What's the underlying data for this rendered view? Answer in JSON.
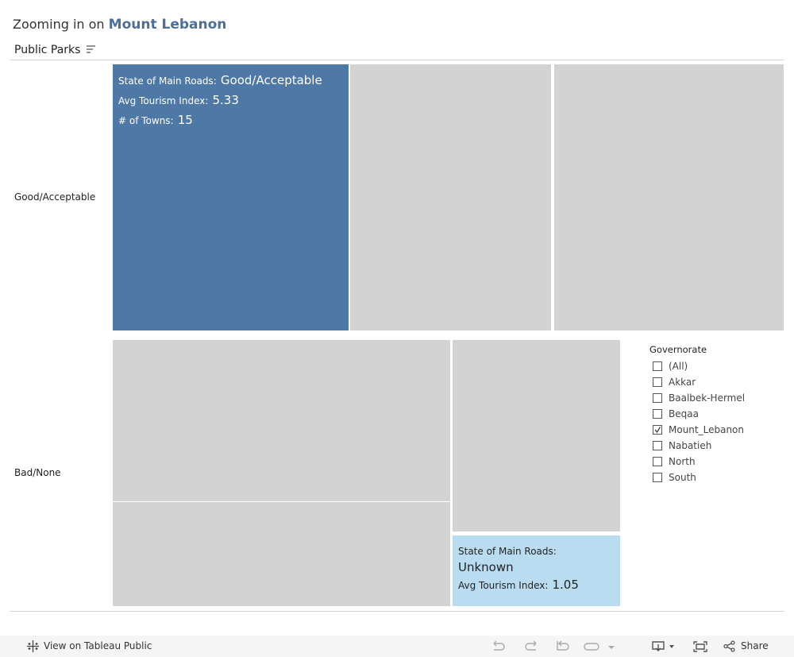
{
  "title": {
    "prefix": "Zooming in on",
    "highlight": "Mount Lebanon"
  },
  "sheet_label": "Public Parks",
  "rows": [
    "Good/Acceptable",
    "Bad/None"
  ],
  "tiles": [
    {
      "fields": [
        {
          "label": "State of Main Roads:",
          "value": "Good/Acceptable"
        },
        {
          "label": "Avg Tourism Index:",
          "value": 5.33
        },
        {
          "label": "# of Towns:",
          "value": 15
        }
      ]
    },
    {
      "fields": [
        {
          "label": "State of Main Roads:",
          "value": "Unknown"
        },
        {
          "label": "Avg Tourism Index:",
          "value": 1.05
        }
      ]
    }
  ],
  "filter": {
    "title": "Governorate",
    "options": [
      {
        "label": "(All)",
        "checked": false
      },
      {
        "label": "Akkar",
        "checked": false
      },
      {
        "label": "Baalbek-Hermel",
        "checked": false
      },
      {
        "label": "Beqaa",
        "checked": false
      },
      {
        "label": "Mount_Lebanon",
        "checked": true
      },
      {
        "label": "Nabatieh",
        "checked": false
      },
      {
        "label": "North",
        "checked": false
      },
      {
        "label": "South",
        "checked": false
      }
    ]
  },
  "toolbar": {
    "view": "View on Tableau Public",
    "share": "Share"
  }
}
